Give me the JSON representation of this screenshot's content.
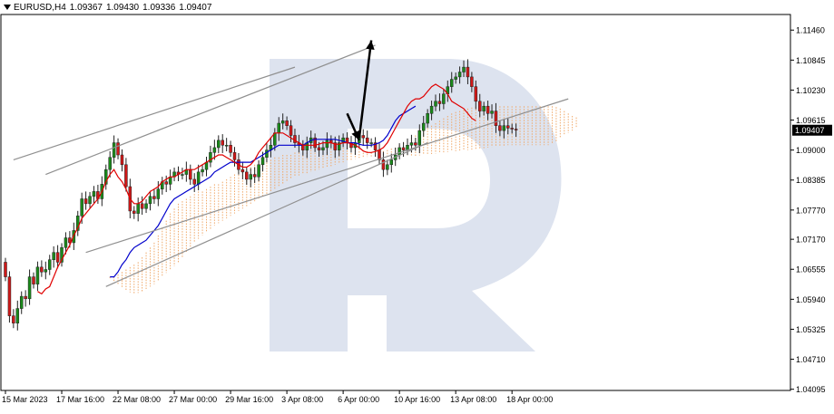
{
  "header": {
    "symbol": "EURUSD,H4",
    "open": "1.09367",
    "high": "1.09430",
    "low": "1.09336",
    "close": "1.09407"
  },
  "colors": {
    "background": "#ffffff",
    "grid": "#c8c8c8",
    "axis_text": "#000000",
    "tenkan": "#e00000",
    "kijun": "#0000cc",
    "kumo": "#f0a868",
    "channel_lines": "#909090",
    "arrow": "#000000",
    "watermark": "#dde3ef",
    "price_label_bg": "#000000",
    "price_label_text": "#ffffff",
    "bull_candle": "#1a8a1a",
    "bear_candle": "#d01818"
  },
  "chart_data": {
    "type": "candlestick",
    "timeframe": "H4",
    "y_ticks": [
      "1.11460",
      "1.10845",
      "1.10230",
      "1.09615",
      "1.09000",
      "1.08385",
      "1.07770",
      "1.07170",
      "1.06555",
      "1.05940",
      "1.05325",
      "1.04710",
      "1.04095"
    ],
    "ylim": [
      1.0407,
      1.1178
    ],
    "current_price": "1.09407",
    "x_tick_labels": [
      "15 Mar 2023",
      "17 Mar 16:00",
      "22 Mar 08:00",
      "27 Mar 00:00",
      "29 Mar 16:00",
      "3 Apr 08:00",
      "6 Apr 00:00",
      "10 Apr 16:00",
      "13 Apr 08:00",
      "18 Apr 00:00"
    ],
    "x_tick_index": [
      0,
      14,
      28,
      42,
      56,
      70,
      84,
      98,
      112,
      126
    ],
    "closes": [
      1.064,
      1.056,
      1.0545,
      1.0575,
      1.06,
      1.0595,
      1.064,
      1.0625,
      1.066,
      1.065,
      1.0655,
      1.0675,
      1.069,
      1.067,
      1.07,
      1.072,
      1.071,
      1.0735,
      1.0765,
      1.08,
      1.079,
      1.0805,
      1.0815,
      1.08,
      1.083,
      1.086,
      1.0885,
      1.0915,
      1.089,
      1.087,
      1.0825,
      1.0775,
      1.077,
      1.079,
      1.078,
      1.079,
      1.0805,
      1.08,
      1.082,
      1.0835,
      1.083,
      1.0845,
      1.0855,
      1.085,
      1.085,
      1.086,
      1.084,
      1.083,
      1.0855,
      1.086,
      1.0875,
      1.0895,
      1.0905,
      1.092,
      1.091,
      1.091,
      1.0895,
      1.088,
      1.086,
      1.0855,
      1.084,
      1.085,
      1.0845,
      1.087,
      1.0885,
      1.09,
      1.091,
      1.0935,
      1.0955,
      1.096,
      1.095,
      1.093,
      1.0915,
      1.091,
      1.09,
      1.0915,
      1.0925,
      1.0905,
      1.09,
      1.0905,
      1.092,
      1.0915,
      1.09,
      1.0915,
      1.0925,
      1.0915,
      1.0905,
      1.0915,
      1.093,
      1.0925,
      1.0915,
      1.0915,
      1.09,
      1.088,
      1.086,
      1.087,
      1.088,
      1.089,
      1.0905,
      1.09,
      1.091,
      1.0915,
      1.091,
      1.094,
      1.0955,
      1.0975,
      1.099,
      1.1,
      1.0995,
      1.1015,
      1.103,
      1.1045,
      1.105,
      1.106,
      1.107,
      1.105,
      1.103,
      1.1,
      1.098,
      1.099,
      1.0975,
      1.098,
      1.095,
      1.094,
      1.095,
      1.0945,
      1.0943,
      1.0941
    ],
    "open_first": 1.067,
    "tenkan": [
      null,
      null,
      null,
      null,
      null,
      null,
      null,
      null,
      1.061,
      1.0605,
      1.0615,
      1.062,
      1.064,
      1.066,
      1.0675,
      1.069,
      1.0705,
      1.0725,
      1.074,
      1.076,
      1.077,
      1.078,
      1.079,
      1.08,
      1.0815,
      1.0835,
      1.085,
      1.086,
      1.0845,
      1.0835,
      1.082,
      1.08,
      1.079,
      1.079,
      1.0795,
      1.0805,
      1.0815,
      1.082,
      1.0825,
      1.0835,
      1.084,
      1.0845,
      1.0845,
      1.085,
      1.0855,
      1.086,
      1.086,
      1.086,
      1.0865,
      1.087,
      1.0875,
      1.088,
      1.0885,
      1.089,
      1.089,
      1.0885,
      1.088,
      1.0875,
      1.087,
      1.0865,
      1.0865,
      1.087,
      1.088,
      1.0895,
      1.0905,
      1.0915,
      1.0925,
      1.0935,
      1.0935,
      1.0935,
      1.093,
      1.0925,
      1.092,
      1.0915,
      1.091,
      1.091,
      1.091,
      1.091,
      1.0912,
      1.0915,
      1.0915,
      1.0915,
      1.0912,
      1.0912,
      1.0915,
      1.0915,
      1.0913,
      1.091,
      1.0905,
      1.0898,
      1.0895,
      1.0895,
      1.0897,
      1.09,
      1.0905,
      1.0915,
      1.093,
      1.0945,
      1.096,
      1.0975,
      1.099,
      1.1,
      1.1005,
      1.1005,
      1.101,
      1.102,
      1.103,
      1.1035,
      1.103,
      1.1025,
      1.1015,
      1.1,
      1.0995,
      1.099,
      1.0985,
      1.0975,
      1.0965,
      1.096
    ],
    "kijun": [
      null,
      null,
      null,
      null,
      null,
      null,
      null,
      null,
      null,
      null,
      null,
      null,
      null,
      null,
      null,
      null,
      null,
      null,
      null,
      null,
      null,
      null,
      null,
      null,
      null,
      null,
      1.064,
      1.064,
      1.065,
      1.0665,
      1.0675,
      1.069,
      1.07,
      1.0705,
      1.071,
      1.0715,
      1.0725,
      1.0735,
      1.0745,
      1.076,
      1.0775,
      1.079,
      1.08,
      1.0805,
      1.081,
      1.0815,
      1.082,
      1.0825,
      1.083,
      1.0835,
      1.084,
      1.0845,
      1.0855,
      1.086,
      1.0865,
      1.087,
      1.0875,
      1.0875,
      1.0875,
      1.0875,
      1.0875,
      1.0875,
      1.088,
      1.0885,
      1.089,
      1.0895,
      1.09,
      1.0905,
      1.091,
      1.091,
      1.091,
      1.091,
      1.091,
      1.091,
      1.091,
      1.0915,
      1.092,
      1.0922,
      1.0922,
      1.0922,
      1.0922,
      1.0922,
      1.0922,
      1.092,
      1.0918,
      1.0915,
      1.0915,
      1.0915,
      1.0912,
      1.091,
      1.091,
      1.091,
      1.0912,
      1.0915,
      1.092,
      1.093,
      1.0945,
      1.096,
      1.097,
      1.0975,
      1.098,
      1.0985,
      1.099
    ],
    "kumo_upper": [
      null,
      null,
      null,
      null,
      null,
      null,
      null,
      null,
      null,
      null,
      null,
      null,
      null,
      null,
      null,
      null,
      null,
      null,
      null,
      null,
      null,
      null,
      null,
      null,
      null,
      null,
      1.064,
      1.064,
      1.0645,
      1.065,
      1.0655,
      1.066,
      1.0665,
      1.067,
      1.068,
      1.069,
      1.07,
      1.071,
      1.0725,
      1.074,
      1.0755,
      1.077,
      1.078,
      1.079,
      1.0795,
      1.08,
      1.0805,
      1.081,
      1.0815,
      1.0815,
      1.082,
      1.0825,
      1.083,
      1.083,
      1.0835,
      1.084,
      1.0845,
      1.085,
      1.0855,
      1.086,
      1.086,
      1.0865,
      1.087,
      1.087,
      1.0875,
      1.088,
      1.088,
      1.0885,
      1.0885,
      1.089,
      1.089,
      1.089,
      1.0895,
      1.0895,
      1.09,
      1.09,
      1.09,
      1.09,
      1.09,
      1.09,
      1.0902,
      1.0903,
      1.0905,
      1.0905,
      1.0905,
      1.0905,
      1.0905,
      1.0905,
      1.0903,
      1.09,
      1.0898,
      1.0895,
      1.0895,
      1.0895,
      1.0898,
      1.09,
      1.0903,
      1.0905,
      1.091,
      1.0915,
      1.092,
      1.0925,
      1.093,
      1.0935,
      1.094,
      1.0945,
      1.095,
      1.0955,
      1.096,
      1.0965,
      1.097,
      1.0975,
      1.0978,
      1.098,
      1.0982,
      1.0985,
      1.0987,
      1.0989,
      1.099,
      1.099,
      1.099,
      1.099,
      1.099,
      1.099,
      1.099,
      1.099,
      1.099,
      1.099,
      1.099,
      1.099,
      1.099,
      1.099,
      1.099,
      1.099,
      1.099,
      1.099,
      1.099,
      1.0988,
      1.0985,
      1.098,
      1.0975,
      1.097,
      1.0967
    ],
    "kumo_lower": [
      null,
      null,
      null,
      null,
      null,
      null,
      null,
      null,
      null,
      null,
      null,
      null,
      null,
      null,
      null,
      null,
      null,
      null,
      null,
      null,
      null,
      null,
      null,
      null,
      null,
      null,
      1.0635,
      1.063,
      1.0625,
      1.0618,
      1.0612,
      1.0608,
      1.0606,
      1.0607,
      1.061,
      1.0615,
      1.062,
      1.0625,
      1.0632,
      1.064,
      1.0648,
      1.0655,
      1.0662,
      1.067,
      1.068,
      1.069,
      1.07,
      1.071,
      1.0718,
      1.0725,
      1.0732,
      1.0738,
      1.0745,
      1.075,
      1.0755,
      1.076,
      1.0765,
      1.077,
      1.0775,
      1.078,
      1.0785,
      1.079,
      1.0795,
      1.08,
      1.0805,
      1.081,
      1.0815,
      1.082,
      1.0825,
      1.083,
      1.0835,
      1.084,
      1.0845,
      1.0848,
      1.085,
      1.0852,
      1.0855,
      1.0858,
      1.086,
      1.0862,
      1.0865,
      1.0867,
      1.087,
      1.0872,
      1.0875,
      1.0877,
      1.088,
      1.0882,
      1.0884,
      1.0885,
      1.0886,
      1.0887,
      1.0888,
      1.0888,
      1.0888,
      1.0888,
      1.0888,
      1.0888,
      1.0888,
      1.0888,
      1.0888,
      1.0888,
      1.0888,
      1.0889,
      1.089,
      1.0891,
      1.0892,
      1.0893,
      1.0894,
      1.0895,
      1.0896,
      1.0897,
      1.0898,
      1.0899,
      1.09,
      1.09,
      1.0901,
      1.0902,
      1.0903,
      1.0904,
      1.0905,
      1.0906,
      1.0907,
      1.0908,
      1.0909,
      1.091,
      1.091,
      1.091,
      1.091,
      1.091,
      1.091,
      1.091,
      1.091,
      1.091,
      1.091,
      1.091,
      1.0912,
      1.0918,
      1.0925,
      1.093,
      1.0935,
      1.094,
      1.0945
    ],
    "trend_lines": [
      {
        "from": [
          2,
          1.088
        ],
        "to": [
          72,
          1.107
        ],
        "name": "upper-channel-line"
      },
      {
        "from": [
          10,
          1.085
        ],
        "to": [
          92,
          1.1115
        ],
        "name": "upper-channel-line-2"
      },
      {
        "from": [
          20,
          1.069
        ],
        "to": [
          140,
          1.1005
        ],
        "name": "lower-channel-line"
      },
      {
        "from": [
          25,
          1.062
        ],
        "to": [
          105,
          1.0915
        ],
        "name": "lower-support-line"
      }
    ],
    "arrows": [
      {
        "from": [
          85,
          1.0975
        ],
        "to": [
          88,
          1.092
        ],
        "name": "down-arrow"
      },
      {
        "from": [
          88,
          1.0925
        ],
        "to": [
          91,
          1.1125
        ],
        "name": "up-arrow"
      }
    ]
  }
}
